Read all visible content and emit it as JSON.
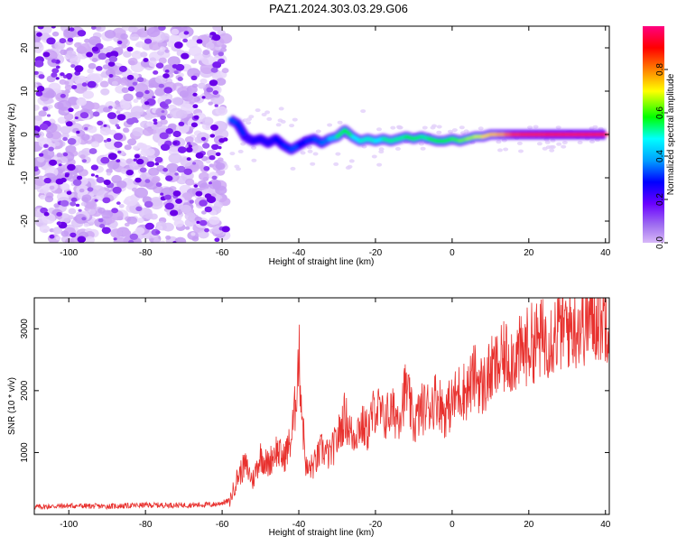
{
  "title": "PAZ1.2024.303.03.29.G06",
  "colors": {
    "snr_line": "#e8312e",
    "speckle_dark": "#6a00e8",
    "speckle_light": "#cfa9f5",
    "colorbar": [
      "#d8b8f8",
      "#6a00ff",
      "#0000ff",
      "#00a0ff",
      "#00ffff",
      "#00ff00",
      "#ffff00",
      "#ff8000",
      "#ff0000",
      "#ff0080"
    ]
  },
  "chart_data": [
    {
      "type": "heatmap",
      "title": "PAZ1.2024.303.03.29.G06",
      "xlabel": "Height of straight line (km)",
      "ylabel": "Frequency (Hz)",
      "xlim": [
        -109,
        41
      ],
      "ylim": [
        -25,
        25
      ],
      "x_ticks": [
        -100,
        -80,
        -60,
        -40,
        -20,
        0,
        20,
        40
      ],
      "y_ticks": [
        20,
        10,
        0,
        -10,
        -20
      ],
      "colorbar": {
        "label": "Normalized spectral amplitude",
        "range": [
          0,
          1
        ],
        "ticks": [
          "0.0",
          "0.2",
          "0.4",
          "0.6",
          "0.8"
        ]
      },
      "noise_region_x": [
        -109,
        -59
      ],
      "signal_track": {
        "x": [
          -58,
          -56,
          -54,
          -52,
          -50,
          -48,
          -46,
          -44,
          -42,
          -40,
          -38,
          -36,
          -34,
          -32,
          -30,
          -28,
          -26,
          -24,
          -22,
          -20,
          -18,
          -16,
          -14,
          -12,
          -10,
          -8,
          -6,
          -4,
          -2,
          0,
          2,
          4,
          6,
          8,
          10,
          12,
          14,
          16,
          18,
          20,
          22,
          24,
          26,
          28,
          30,
          32,
          34,
          36,
          38,
          40
        ],
        "freq": [
          3.5,
          2.5,
          -0.5,
          -1.5,
          -1.0,
          -2.0,
          -1.0,
          -2.5,
          -3.5,
          -2.5,
          -1.5,
          -1.0,
          -2.0,
          -1.0,
          -0.5,
          1.0,
          -0.5,
          -1.5,
          -1.0,
          -1.5,
          -1.0,
          -1.5,
          -1.0,
          -0.5,
          -1.0,
          -0.5,
          -1.0,
          -1.5,
          -1.5,
          -1.0,
          -1.5,
          -1.0,
          -0.5,
          -0.5,
          0.0,
          0.0,
          0.0,
          0.0,
          0.0,
          0.0,
          0.0,
          0.0,
          0.0,
          0.0,
          0.0,
          0.0,
          0.0,
          0.0,
          0.0,
          0.0
        ],
        "amplitude": [
          0.3,
          0.35,
          0.25,
          0.2,
          0.3,
          0.2,
          0.3,
          0.25,
          0.35,
          0.3,
          0.25,
          0.35,
          0.3,
          0.4,
          0.45,
          0.65,
          0.5,
          0.45,
          0.55,
          0.45,
          0.5,
          0.55,
          0.5,
          0.55,
          0.6,
          0.5,
          0.55,
          0.6,
          0.55,
          0.6,
          0.6,
          0.65,
          0.65,
          0.7,
          0.75,
          0.75,
          0.8,
          0.85,
          0.85,
          0.9,
          0.85,
          0.9,
          0.95,
          0.95,
          0.95,
          0.95,
          0.95,
          0.95,
          0.95,
          0.9
        ]
      }
    },
    {
      "type": "line",
      "xlabel": "Height of straight line (km)",
      "ylabel": "SNR (10 * v/v)",
      "xlim": [
        -109,
        41
      ],
      "ylim": [
        0,
        3500
      ],
      "x_ticks": [
        -100,
        -80,
        -60,
        -40,
        -20,
        0,
        20,
        40
      ],
      "y_ticks": [
        1000,
        2000,
        3000
      ],
      "x": [
        -109,
        -100,
        -90,
        -80,
        -70,
        -62,
        -58,
        -56,
        -54,
        -52,
        -50,
        -48,
        -46,
        -44,
        -42,
        -41,
        -40,
        -39,
        -38,
        -36,
        -34,
        -32,
        -30,
        -28,
        -26,
        -24,
        -22,
        -20,
        -18,
        -16,
        -14,
        -12,
        -10,
        -8,
        -6,
        -4,
        -2,
        0,
        2,
        4,
        6,
        8,
        10,
        12,
        14,
        16,
        18,
        20,
        22,
        24,
        26,
        28,
        30,
        32,
        34,
        36,
        38,
        40
      ],
      "y": [
        120,
        140,
        130,
        150,
        150,
        160,
        220,
        600,
        800,
        550,
        950,
        800,
        1050,
        900,
        1200,
        1700,
        2600,
        1500,
        700,
        800,
        1050,
        950,
        1200,
        1600,
        1250,
        1450,
        1350,
        1750,
        1550,
        1650,
        1600,
        2050,
        1450,
        1700,
        1750,
        1900,
        1650,
        1800,
        2000,
        2000,
        2250,
        2050,
        2300,
        2400,
        2550,
        2550,
        2600,
        2750,
        2800,
        2850,
        2900,
        3000,
        3050,
        3050,
        3100,
        3150,
        3200,
        3200
      ]
    }
  ]
}
